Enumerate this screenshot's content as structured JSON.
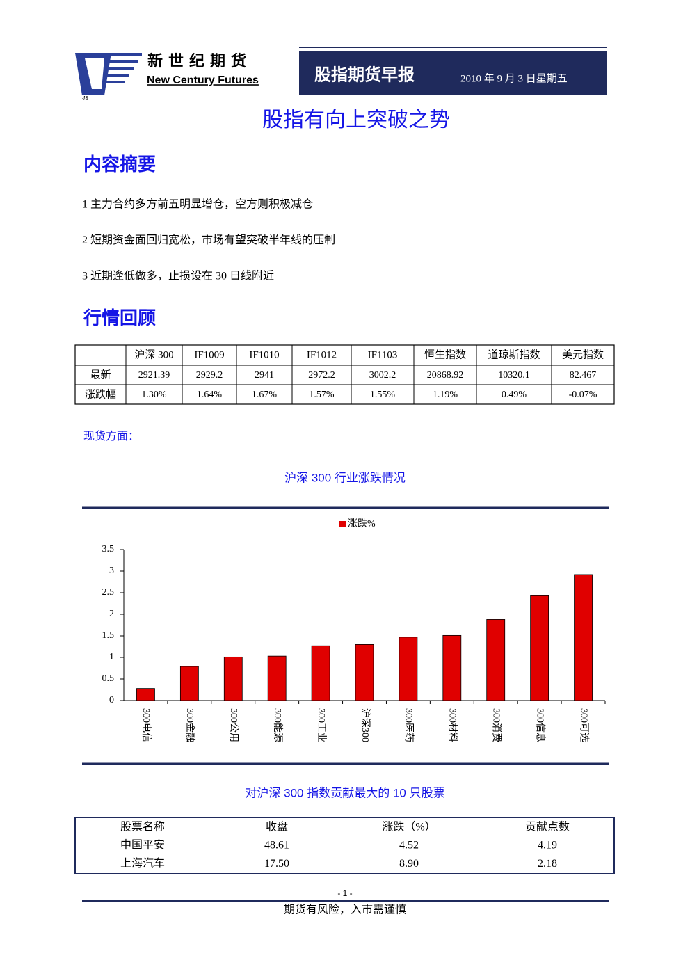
{
  "header": {
    "logo_cn": "新世纪期货",
    "logo_en": "New Century Futures",
    "logo_code": "48",
    "report_name": "股指期货早报",
    "date": "2010 年 9 月 3 日星期五"
  },
  "title": "股指有向上突破之势",
  "summary": {
    "heading": "内容摘要",
    "items": [
      "1 主力合约多方前五明显增仓，空方则积极减仓",
      "2  短期资金面回归宽松，市场有望突破半年线的压制",
      "3  近期逢低做多，止损设在 30 日线附近"
    ]
  },
  "review": {
    "heading": "行情回顾",
    "table": {
      "columns": [
        "沪深 300",
        "IF1009",
        "IF1010",
        "IF1012",
        "IF1103",
        "恒生指数",
        "道琼斯指数",
        "美元指数"
      ],
      "rows": [
        {
          "label": "最新",
          "cells": [
            "2921.39",
            "2929.2",
            "2941",
            "2972.2",
            "3002.2",
            "20868.92",
            "10320.1",
            "82.467"
          ]
        },
        {
          "label": "涨跌幅",
          "cells": [
            "1.30%",
            "1.64%",
            "1.67%",
            "1.57%",
            "1.55%",
            "1.19%",
            "0.49%",
            "-0.07%"
          ]
        }
      ]
    }
  },
  "spot_heading": "现货方面：",
  "chart_data": {
    "type": "bar",
    "title": "沪深 300 行业涨跌情况",
    "categories": [
      "300电信",
      "300金融",
      "300公用",
      "300能源",
      "300工业",
      "沪深300",
      "300医药",
      "300材料",
      "300消费",
      "300信息",
      "300可选"
    ],
    "series": [
      {
        "name": "涨跌%",
        "color": "#e00000",
        "values": [
          0.28,
          0.79,
          1.01,
          1.03,
          1.27,
          1.3,
          1.47,
          1.51,
          1.88,
          2.43,
          2.92
        ]
      }
    ],
    "ylim": [
      0,
      3.5
    ],
    "yticks": [
      0,
      0.5,
      1,
      1.5,
      2,
      2.5,
      3,
      3.5
    ],
    "legend": "top"
  },
  "top10": {
    "title": "对沪深 300 指数贡献最大的 10 只股票",
    "columns": [
      "股票名称",
      "收盘",
      "涨跌（%）",
      "贡献点数"
    ],
    "rows": [
      [
        "中国平安",
        "48.61",
        "4.52",
        "4.19"
      ],
      [
        "上海汽车",
        "17.50",
        "8.90",
        "2.18"
      ]
    ]
  },
  "footer": {
    "page": "- 1 -",
    "warning": "期货有风险，入市需谨慎"
  }
}
